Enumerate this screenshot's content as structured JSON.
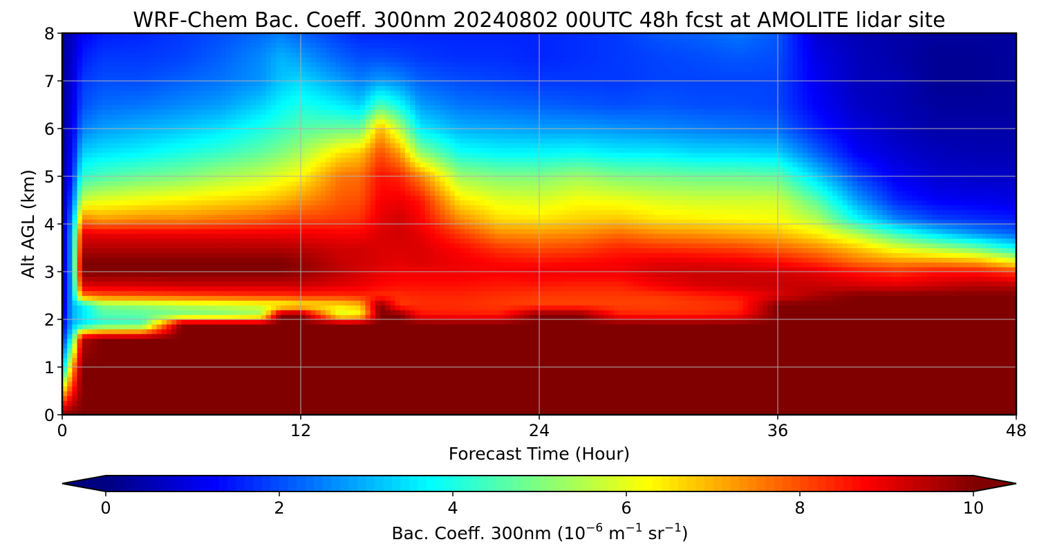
{
  "chart_data": {
    "type": "heatmap",
    "title": "WRF-Chem Bac. Coeff. 300nm  20240802 00UTC 48h fcst at AMOLITE lidar site",
    "xlabel": "Forecast Time (Hour)",
    "ylabel": "Alt AGL (km)",
    "xlim": [
      0,
      48
    ],
    "ylim": [
      0,
      8
    ],
    "x_ticks": [
      "0",
      "12",
      "24",
      "36",
      "48"
    ],
    "y_ticks": [
      "0",
      "1",
      "2",
      "3",
      "4",
      "5",
      "6",
      "7",
      "8"
    ],
    "grid": true,
    "colormap": "jet",
    "colorbar": {
      "orientation": "horizontal",
      "placement": "bottom",
      "range": [
        0,
        10
      ],
      "extend": "both",
      "ticks": [
        "0",
        "2",
        "4",
        "6",
        "8",
        "10"
      ],
      "label_text": "Bac. Coeff. 300nm  (10",
      "label_exp1": "−6",
      "label_mid": " m",
      "label_exp2": "−1",
      "label_mid2": " sr",
      "label_exp3": "−1",
      "label_end": ")"
    },
    "profile_hours": [
      0,
      0.5,
      1,
      2,
      4,
      6,
      8,
      10,
      11,
      12,
      14,
      15,
      16,
      17,
      18,
      20,
      22,
      24,
      26,
      28,
      30,
      32,
      34,
      36,
      38,
      40,
      42,
      44,
      46,
      48
    ],
    "profile_alt_km": [
      0,
      1,
      1.6,
      1.9,
      2.1,
      2.3,
      2.5,
      2.7,
      3.0,
      3.2,
      3.5,
      3.8,
      4.1,
      4.5,
      5.0,
      5.5,
      6.0,
      6.5,
      7.0,
      7.5,
      8.0
    ],
    "values": [
      [
        10,
        3,
        1.5,
        1,
        0.8,
        0.6,
        0.5,
        0.5,
        0.5,
        0.5,
        0.4,
        0.4,
        0.4,
        0.4,
        0.3,
        0.3,
        0.3,
        0.3,
        0.3,
        0.3,
        0.3
      ],
      [
        10,
        7,
        4,
        3,
        3,
        3,
        3,
        3,
        3,
        3,
        3,
        3,
        2.5,
        2,
        1.5,
        1.2,
        1,
        0.9,
        0.8,
        0.7,
        0.6
      ],
      [
        10,
        10,
        9.5,
        3.5,
        3.5,
        3.5,
        7.5,
        9,
        10,
        10,
        9.5,
        9,
        7.5,
        5.8,
        4.2,
        3.3,
        2.5,
        2,
        1.8,
        1.5,
        1.2
      ],
      [
        10,
        10,
        10,
        4.2,
        4.5,
        5,
        7.8,
        9.1,
        10,
        10,
        9.5,
        8.9,
        7.2,
        6,
        4.5,
        3.5,
        2.8,
        2.3,
        2,
        1.8,
        1.5
      ],
      [
        10,
        10,
        10,
        4.5,
        4.6,
        5.2,
        7.9,
        9.1,
        10,
        10,
        9.5,
        8.9,
        7.4,
        6.2,
        4.8,
        3.7,
        3,
        2.4,
        2,
        1.8,
        1.6
      ],
      [
        10,
        10,
        10,
        10,
        4.9,
        5.5,
        8,
        9.2,
        10,
        10,
        9.5,
        8.9,
        7.4,
        6.4,
        5,
        4,
        3.2,
        2.6,
        2.2,
        1.9,
        1.8
      ],
      [
        10,
        10,
        10,
        10,
        5,
        5.7,
        8.1,
        9.2,
        10,
        10,
        9.5,
        8.9,
        7.6,
        6.6,
        5.4,
        4.3,
        3.5,
        2.8,
        2.4,
        2.2,
        2
      ],
      [
        10,
        10,
        10,
        10,
        5.3,
        5.9,
        8.2,
        9.2,
        10,
        10,
        9.5,
        8.9,
        7.8,
        6.8,
        5.7,
        4.7,
        4,
        3.3,
        2.7,
        2.6,
        2.3
      ],
      [
        10,
        10,
        10,
        10,
        10,
        6,
        8.2,
        9.2,
        10,
        10,
        9.5,
        8.9,
        8,
        7,
        6,
        5,
        4.3,
        3.7,
        3.2,
        3,
        2.5
      ],
      [
        10,
        10,
        10,
        10,
        10,
        6.3,
        8.3,
        9.2,
        9.8,
        9.8,
        9.4,
        8.9,
        8.1,
        7.3,
        6.3,
        5.4,
        4.6,
        4,
        3.4,
        2.8,
        2.2
      ],
      [
        10,
        10,
        10,
        10,
        5.8,
        6.5,
        8.3,
        9,
        9.4,
        9.3,
        9.2,
        8.8,
        8.2,
        7.9,
        7.6,
        6.5,
        4.8,
        3.6,
        2.8,
        2.2,
        1.8
      ],
      [
        10,
        10,
        10,
        10,
        6.2,
        6.9,
        8.4,
        8.9,
        9.2,
        9.2,
        9.2,
        8.8,
        8.3,
        8,
        7.7,
        6.8,
        4.8,
        3.3,
        2.5,
        2,
        1.6
      ],
      [
        10,
        10,
        10,
        10,
        10,
        10,
        8.3,
        8.7,
        9,
        9.1,
        9.1,
        9.1,
        9,
        8.8,
        8.6,
        8,
        7,
        4.5,
        2.8,
        2,
        1.6
      ],
      [
        10,
        10,
        10,
        10,
        10,
        8.2,
        8.3,
        8.6,
        8.9,
        9,
        9.1,
        9.2,
        9.2,
        8.9,
        8.4,
        7.2,
        5.5,
        3.8,
        2.6,
        1.9,
        1.6
      ],
      [
        10,
        10,
        10,
        10,
        8.6,
        8.3,
        8.4,
        8.6,
        8.9,
        9.1,
        9.1,
        9,
        8.8,
        8.6,
        7.5,
        5.2,
        3.6,
        2.8,
        2.2,
        1.8,
        1.6
      ],
      [
        10,
        10,
        10,
        10,
        8.5,
        8.3,
        8.4,
        8.6,
        8.9,
        8.9,
        8.7,
        8.2,
        7.4,
        6.5,
        5.3,
        3.9,
        3,
        2.4,
        2,
        1.7,
        1.6
      ],
      [
        10,
        10,
        10,
        10,
        8.5,
        8.2,
        8.3,
        8.5,
        8.8,
        8.7,
        8.2,
        7.4,
        6.6,
        6,
        5,
        3.7,
        2.9,
        2.3,
        1.9,
        1.7,
        1.6
      ],
      [
        10,
        10,
        10,
        10,
        10,
        8.1,
        8.2,
        8.5,
        8.9,
        8.6,
        8,
        7.3,
        6.5,
        5.9,
        5,
        3.7,
        2.8,
        2.2,
        1.8,
        1.6,
        1.6
      ],
      [
        10,
        10,
        10,
        10,
        10,
        8.1,
        8.2,
        8.4,
        8.9,
        8.7,
        8.1,
        7.4,
        6.7,
        6.2,
        5.3,
        3.8,
        2.8,
        2.1,
        1.8,
        1.7,
        1.7
      ],
      [
        10,
        10,
        10,
        10,
        8.5,
        8.1,
        8.2,
        8.4,
        8.9,
        8.8,
        8.4,
        7.7,
        6.8,
        6.1,
        5,
        3.6,
        2.7,
        2,
        1.8,
        1.8,
        1.8
      ],
      [
        10,
        10,
        10,
        10,
        8.4,
        8.1,
        8.2,
        8.8,
        9.2,
        9,
        8.3,
        7.4,
        6.5,
        5.9,
        4.9,
        3.6,
        2.6,
        2.1,
        1.9,
        1.9,
        2.1
      ],
      [
        10,
        10,
        10,
        10,
        8.4,
        8.2,
        8.4,
        9.1,
        9.3,
        9,
        8.2,
        7.3,
        6.4,
        5.8,
        4.8,
        3.4,
        2.5,
        2,
        1.9,
        2,
        2.2
      ],
      [
        10,
        10,
        10,
        10,
        8.6,
        8.3,
        8.6,
        9.2,
        9.3,
        8.9,
        8.1,
        7.1,
        6.3,
        5.8,
        4.8,
        3.4,
        2.4,
        2,
        1.9,
        2.1,
        2.4
      ],
      [
        10,
        10,
        10,
        10,
        10,
        10,
        9.1,
        9.3,
        9.2,
        8.7,
        7.8,
        6.9,
        6.2,
        5.8,
        4.7,
        3.3,
        2.3,
        1.9,
        1.9,
        2,
        2.1
      ],
      [
        10,
        10,
        10,
        10,
        10,
        10,
        9.6,
        9.3,
        9,
        8.3,
        7.4,
        6.4,
        5.5,
        4.6,
        3.3,
        2.2,
        1.5,
        1.2,
        1.1,
        1,
        0.8
      ],
      [
        10,
        10,
        10,
        10,
        10,
        10,
        10,
        9.2,
        8.6,
        7.7,
        6.8,
        5.5,
        3.8,
        2.8,
        1.9,
        1.2,
        0.9,
        0.7,
        0.6,
        0.6,
        0.5
      ],
      [
        10,
        10,
        10,
        10,
        10,
        10,
        10,
        9.1,
        8.3,
        7.4,
        6,
        4.3,
        2.5,
        1.6,
        1.1,
        0.8,
        0.6,
        0.5,
        0.5,
        0.4,
        0.4
      ],
      [
        10,
        10,
        10,
        10,
        10,
        10,
        10,
        9.3,
        8.6,
        7.4,
        5.4,
        3.4,
        1.9,
        1.2,
        0.8,
        0.6,
        0.4,
        0.3,
        0.2,
        0.2,
        0.3
      ],
      [
        10,
        10,
        10,
        10,
        10,
        10,
        10,
        9.5,
        8.6,
        7.2,
        4.8,
        2.7,
        1.7,
        1.1,
        0.7,
        0.5,
        0.4,
        0.3,
        0.2,
        0.2,
        0.3
      ],
      [
        10,
        10,
        10,
        10,
        10,
        10,
        10,
        9.5,
        8.2,
        6.3,
        3.8,
        2.2,
        1.5,
        1,
        0.7,
        0.5,
        0.4,
        0.3,
        0.3,
        0.3,
        0.3
      ]
    ]
  }
}
